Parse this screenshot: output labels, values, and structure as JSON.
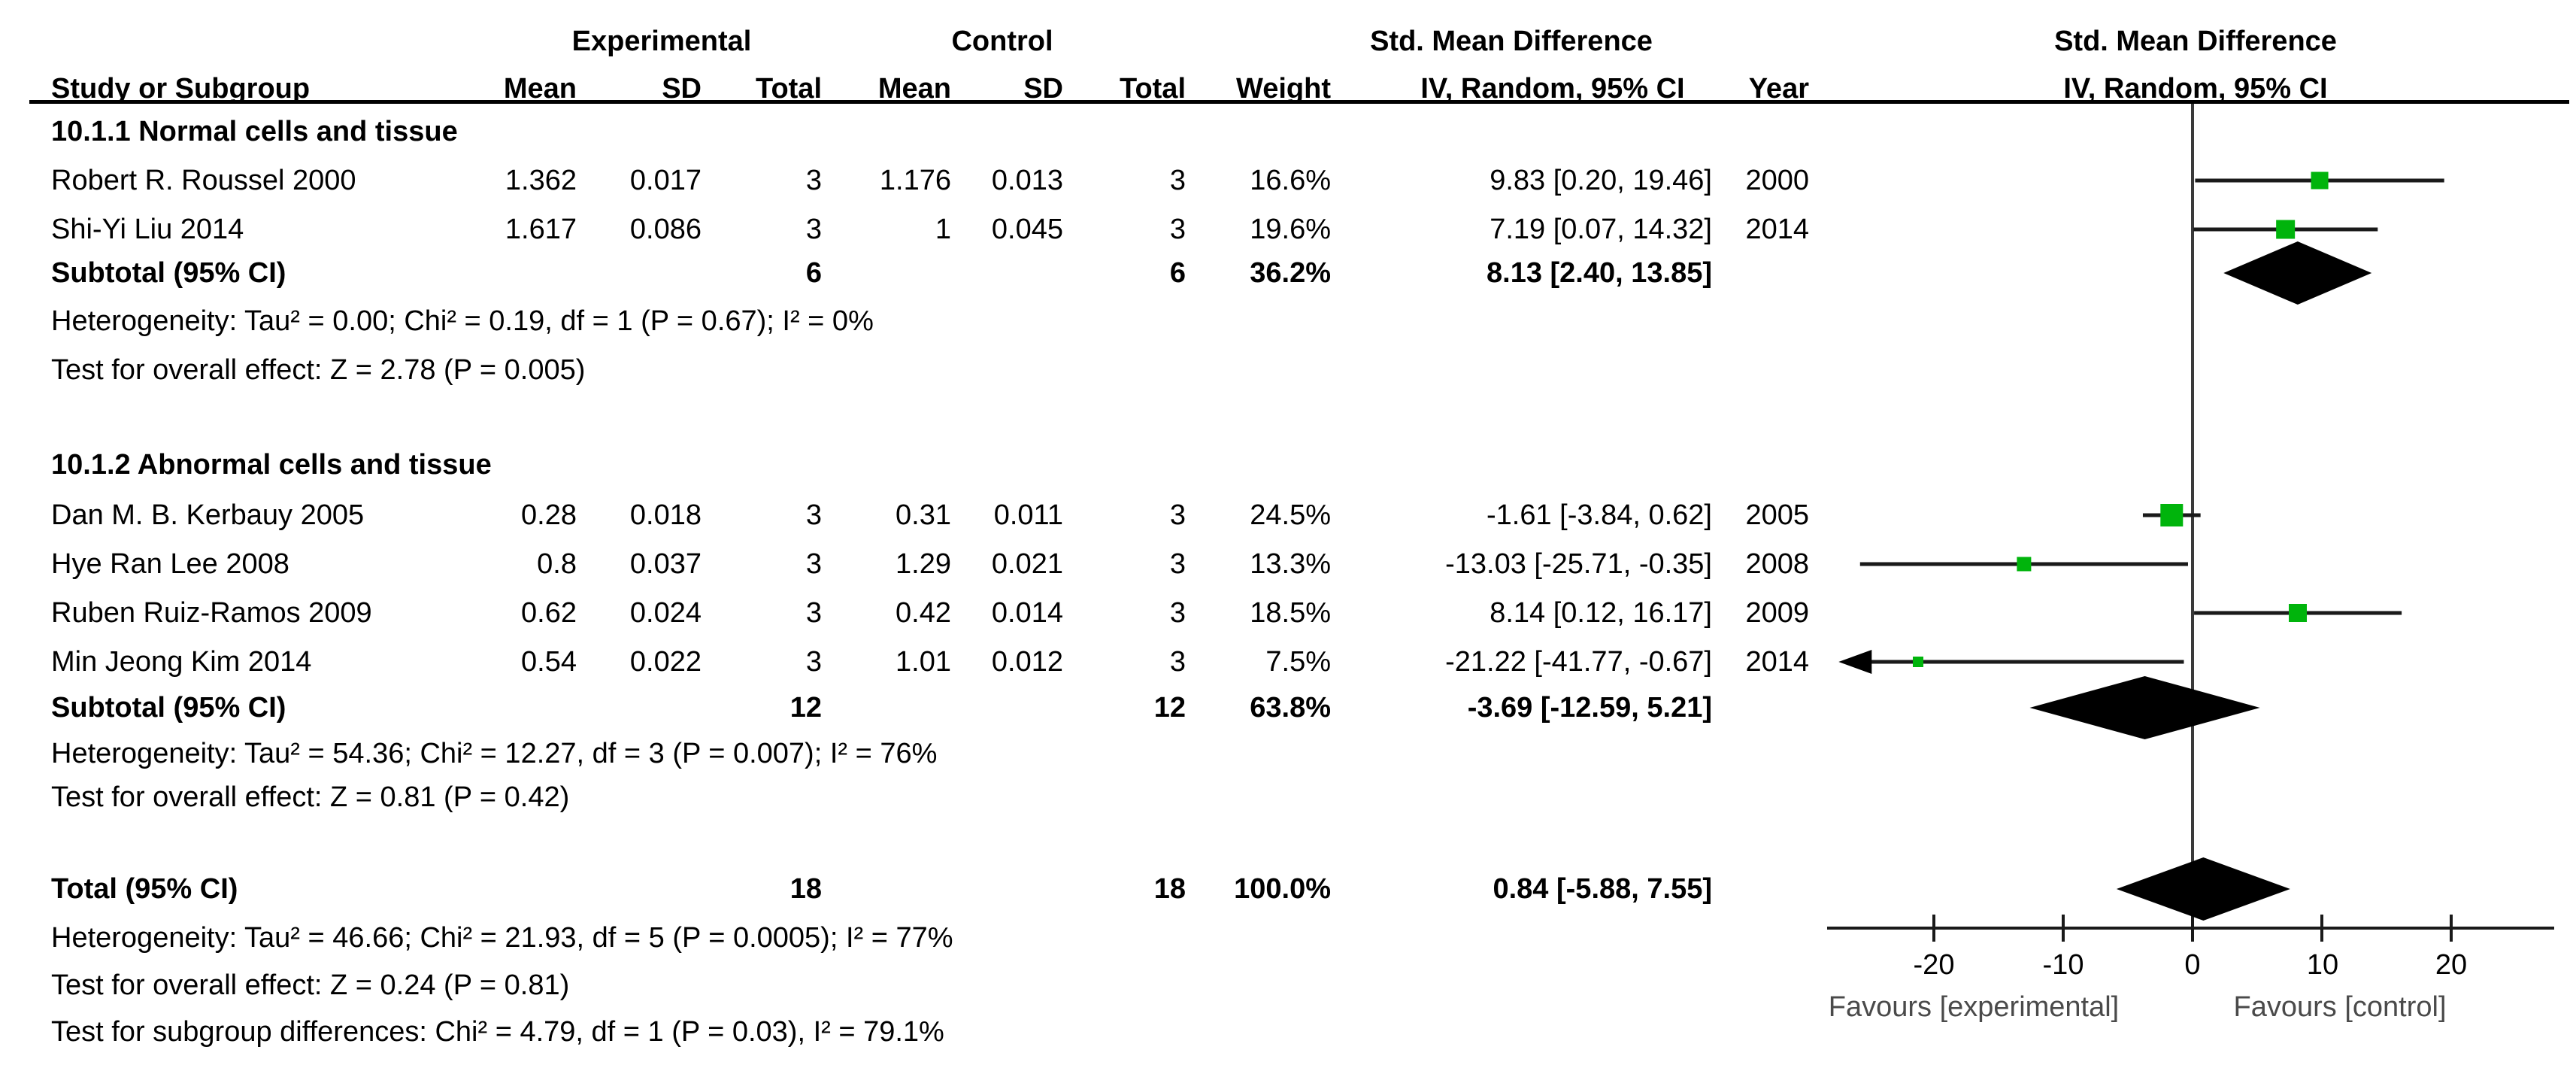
{
  "header": {
    "experimental": "Experimental",
    "control": "Control",
    "smd_left_top": "Std. Mean Difference",
    "smd_right_top": "Std. Mean Difference",
    "study": "Study or Subgroup",
    "exp": {
      "mean": "Mean",
      "sd": "SD",
      "total": "Total"
    },
    "ctl": {
      "mean": "Mean",
      "sd": "SD",
      "total": "Total"
    },
    "weight": "Weight",
    "iv_left": "IV, Random, 95% CI",
    "year": "Year",
    "iv_right": "IV, Random, 95% CI"
  },
  "chart_data": {
    "type": "forest",
    "effect_measure": "Std. Mean Difference",
    "method": "IV, Random, 95% CI",
    "xlim": [
      -28,
      28
    ],
    "xlabel_ticks": [
      -20,
      -10,
      0,
      10,
      20
    ],
    "favours_left": "Favours [experimental]",
    "favours_right": "Favours [control]",
    "marker_color": "#00b40c",
    "diamond_color": "#000000",
    "groups": [
      {
        "title": "10.1.1 Normal cells and tissue",
        "studies": [
          {
            "name": "Robert R. Roussel 2000",
            "mean_e": "1.362",
            "sd_e": "0.017",
            "n_e": "3",
            "mean_c": "1.176",
            "sd_c": "0.013",
            "n_c": "3",
            "weight": "16.6%",
            "weight_val": 16.6,
            "ci_text": "9.83 [0.20, 19.46]",
            "year": "2000",
            "est": 9.83,
            "lo": 0.2,
            "hi": 19.46
          },
          {
            "name": "Shi-Yi Liu 2014",
            "mean_e": "1.617",
            "sd_e": "0.086",
            "n_e": "3",
            "mean_c": "1",
            "sd_c": "0.045",
            "n_c": "3",
            "weight": "19.6%",
            "weight_val": 19.6,
            "ci_text": "7.19 [0.07, 14.32]",
            "year": "2014",
            "est": 7.19,
            "lo": 0.07,
            "hi": 14.32
          }
        ],
        "subtotal": {
          "label": "Subtotal (95% CI)",
          "n_e": "6",
          "n_c": "6",
          "weight": "36.2%",
          "ci_text": "8.13 [2.40, 13.85]",
          "est": 8.13,
          "lo": 2.4,
          "hi": 13.85
        },
        "heterogeneity": "Heterogeneity: Tau² = 0.00; Chi² = 0.19, df = 1 (P = 0.67); I² = 0%",
        "overall_effect": "Test for overall effect: Z = 2.78 (P = 0.005)"
      },
      {
        "title": "10.1.2 Abnormal cells and tissue",
        "studies": [
          {
            "name": "Dan M. B. Kerbauy 2005",
            "mean_e": "0.28",
            "sd_e": "0.018",
            "n_e": "3",
            "mean_c": "0.31",
            "sd_c": "0.011",
            "n_c": "3",
            "weight": "24.5%",
            "weight_val": 24.5,
            "ci_text": "-1.61 [-3.84, 0.62]",
            "year": "2005",
            "est": -1.61,
            "lo": -3.84,
            "hi": 0.62
          },
          {
            "name": "Hye Ran Lee 2008",
            "mean_e": "0.8",
            "sd_e": "0.037",
            "n_e": "3",
            "mean_c": "1.29",
            "sd_c": "0.021",
            "n_c": "3",
            "weight": "13.3%",
            "weight_val": 13.3,
            "ci_text": "-13.03 [-25.71, -0.35]",
            "year": "2008",
            "est": -13.03,
            "lo": -25.71,
            "hi": -0.35
          },
          {
            "name": "Ruben Ruiz-Ramos 2009",
            "mean_e": "0.62",
            "sd_e": "0.024",
            "n_e": "3",
            "mean_c": "0.42",
            "sd_c": "0.014",
            "n_c": "3",
            "weight": "18.5%",
            "weight_val": 18.5,
            "ci_text": "8.14 [0.12, 16.17]",
            "year": "2009",
            "est": 8.14,
            "lo": 0.12,
            "hi": 16.17
          },
          {
            "name": "Min Jeong Kim 2014",
            "mean_e": "0.54",
            "sd_e": "0.022",
            "n_e": "3",
            "mean_c": "1.01",
            "sd_c": "0.012",
            "n_c": "3",
            "weight": "7.5%",
            "weight_val": 7.5,
            "ci_text": "-21.22 [-41.77, -0.67]",
            "year": "2014",
            "est": -21.22,
            "lo": -41.77,
            "hi": -0.67
          }
        ],
        "subtotal": {
          "label": "Subtotal (95% CI)",
          "n_e": "12",
          "n_c": "12",
          "weight": "63.8%",
          "ci_text": "-3.69 [-12.59, 5.21]",
          "est": -3.69,
          "lo": -12.59,
          "hi": 5.21
        },
        "heterogeneity": "Heterogeneity: Tau² = 54.36; Chi² = 12.27, df = 3 (P = 0.007); I² = 76%",
        "overall_effect": "Test for overall effect: Z = 0.81 (P = 0.42)"
      }
    ],
    "total": {
      "label": "Total (95% CI)",
      "n_e": "18",
      "n_c": "18",
      "weight": "100.0%",
      "ci_text": "0.84 [-5.88, 7.55]",
      "est": 0.84,
      "lo": -5.88,
      "hi": 7.55
    },
    "total_heterogeneity": "Heterogeneity: Tau² = 46.66; Chi² = 21.93, df = 5 (P = 0.0005); I² = 77%",
    "total_overall_effect": "Test for overall effect: Z = 0.24 (P = 0.81)",
    "subgroup_differences": "Test for subgroup differences: Chi² = 4.79, df = 1 (P = 0.03), I² = 79.1%"
  }
}
